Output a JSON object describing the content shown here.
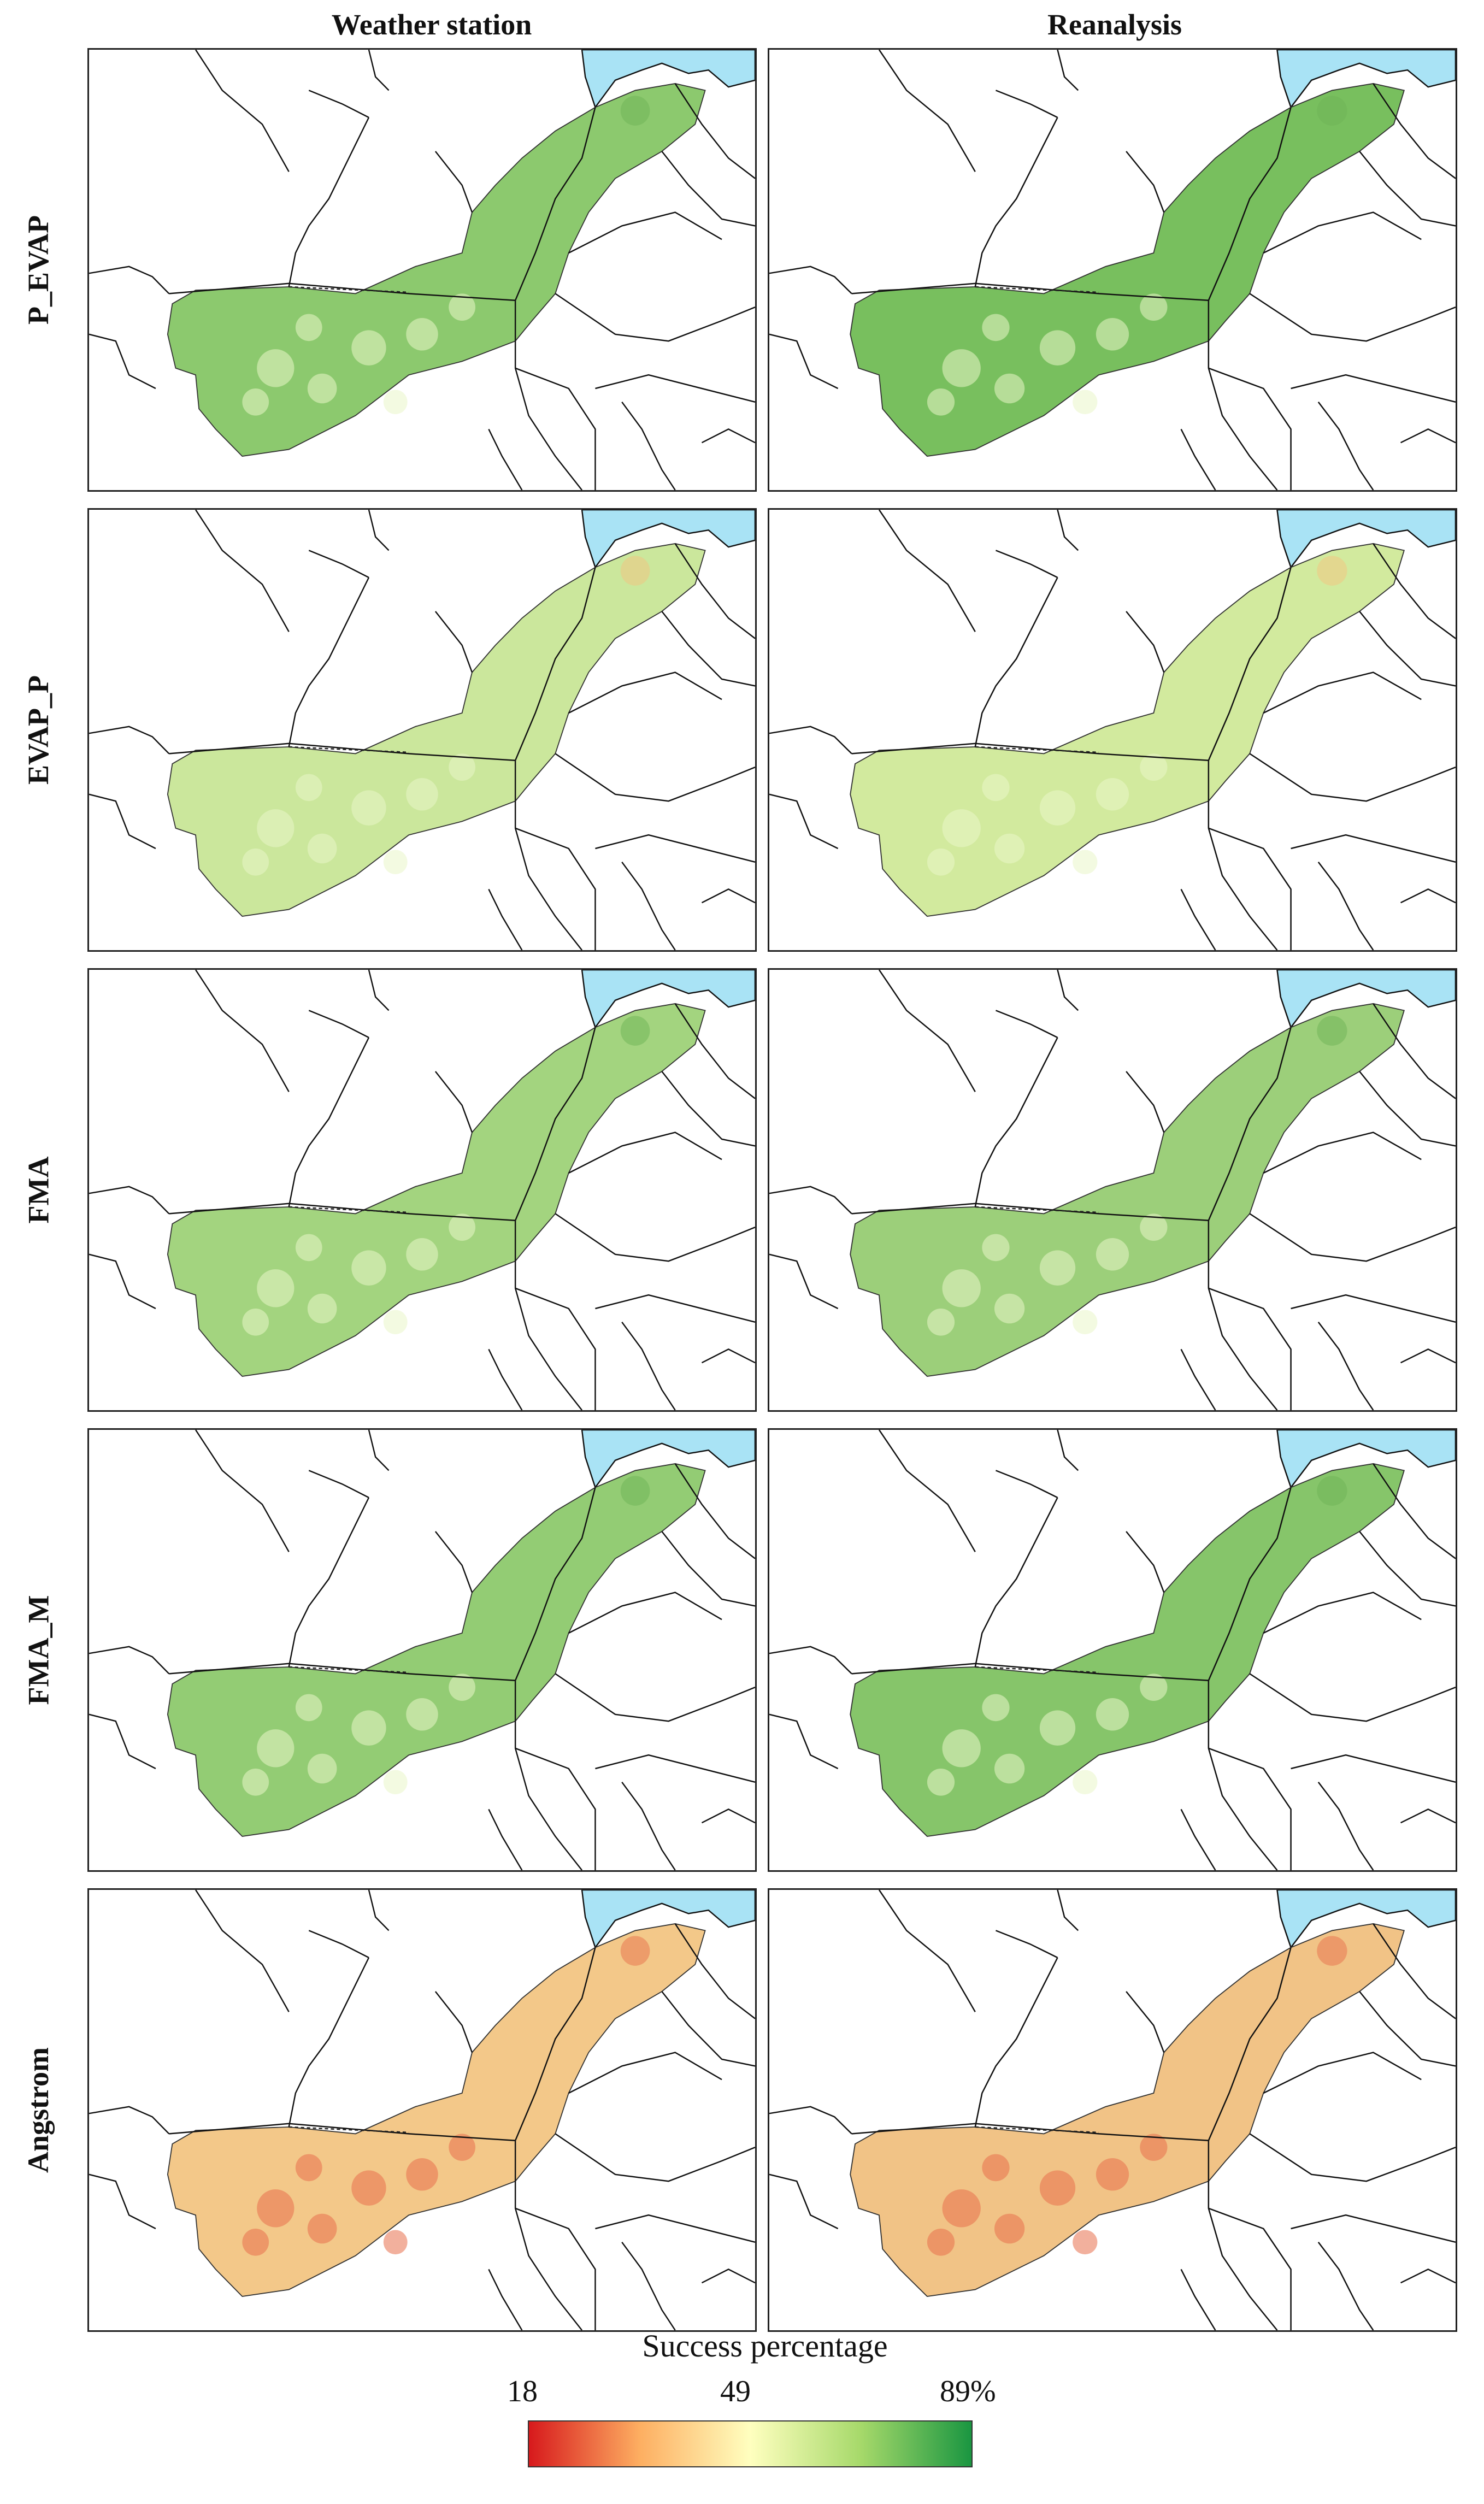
{
  "columns": [
    "Weather station",
    "Reanalysis"
  ],
  "rows": [
    {
      "label": "P_EVAP",
      "station_fill": "#8cc96e",
      "reanalysis_fill": "#78bf5e",
      "hotspot": "#6db455"
    },
    {
      "label": "EVAP_P",
      "station_fill": "#cbe79c",
      "reanalysis_fill": "#d2ea9e",
      "hotspot": "#f3c37f"
    },
    {
      "label": "FMA",
      "station_fill": "#a3d47f",
      "reanalysis_fill": "#9ccf7a",
      "hotspot": "#6db455"
    },
    {
      "label": "FMA_M",
      "station_fill": "#93cc74",
      "reanalysis_fill": "#86c56a",
      "hotspot": "#6db455"
    },
    {
      "label": "Angstrom",
      "station_fill": "#f3c889",
      "reanalysis_fill": "#f1c386",
      "hotspot": "#e8704c"
    }
  ],
  "ocean_color": "#a9e3f5",
  "legend": {
    "title": "Success percentage",
    "min_label": "18",
    "mid_label": "49",
    "max_label": "89%",
    "colors": [
      "#d7191c",
      "#fdae61",
      "#ffffbf",
      "#a6d96a",
      "#1a9641"
    ]
  }
}
